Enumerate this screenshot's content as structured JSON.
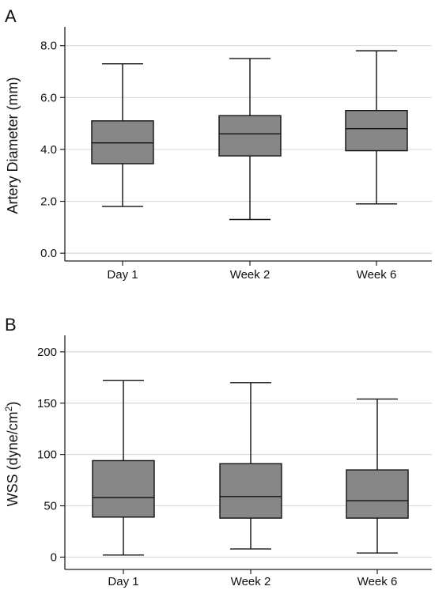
{
  "chart_data": [
    {
      "type": "box",
      "panel_label": "A",
      "ylabel": "Artery Diameter (mm)",
      "xlabel": "",
      "ylim": [
        -0.3,
        8.6
      ],
      "yticks": [
        0,
        2,
        4,
        6,
        8
      ],
      "ytick_labels": [
        "0.0",
        "2.0",
        "4.0",
        "6.0",
        "8.0"
      ],
      "categories": [
        "Day 1",
        "Week 2",
        "Week 6"
      ],
      "boxes": [
        {
          "min": 1.8,
          "q1": 3.45,
          "median": 4.25,
          "q3": 5.1,
          "max": 7.3
        },
        {
          "min": 1.3,
          "q1": 3.75,
          "median": 4.6,
          "q3": 5.3,
          "max": 7.5
        },
        {
          "min": 1.9,
          "q1": 3.95,
          "median": 4.8,
          "q3": 5.5,
          "max": 7.8
        }
      ],
      "grid": true,
      "box_color": "#878787",
      "grid_color": "#d9d9d9"
    },
    {
      "type": "box",
      "panel_label": "B",
      "ylabel": "WSS (dyne/cm²)",
      "ylabel_main": "WSS (dyne/cm",
      "ylabel_sup": "2",
      "ylabel_end": ")",
      "xlabel": "",
      "ylim": [
        -12,
        213
      ],
      "yticks": [
        0,
        50,
        100,
        150,
        200
      ],
      "ytick_labels": [
        "0",
        "50",
        "100",
        "150",
        "200"
      ],
      "categories": [
        "Day 1",
        "Week 2",
        "Week 6"
      ],
      "boxes": [
        {
          "min": 2,
          "q1": 39,
          "median": 58,
          "q3": 94,
          "max": 172
        },
        {
          "min": 8,
          "q1": 38,
          "median": 59,
          "q3": 91,
          "max": 170
        },
        {
          "min": 4,
          "q1": 38,
          "median": 55,
          "q3": 85,
          "max": 154
        }
      ],
      "grid": true,
      "box_color": "#878787",
      "grid_color": "#d9d9d9"
    }
  ]
}
